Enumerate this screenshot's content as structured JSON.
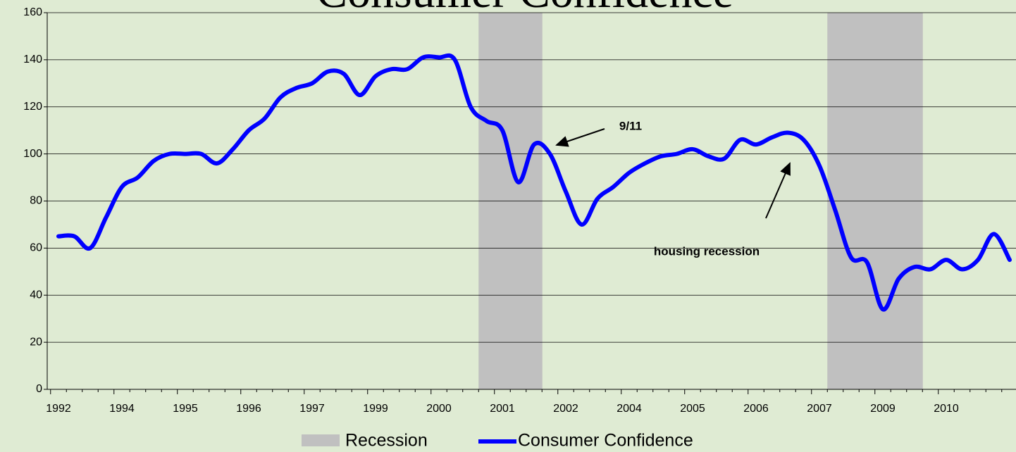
{
  "chart_data": {
    "type": "line",
    "title": "Consumer Confidence",
    "categories": [
      "1992",
      null,
      null,
      null,
      "1994",
      null,
      null,
      null,
      "1995",
      null,
      null,
      null,
      "1996",
      null,
      null,
      null,
      "1997",
      null,
      null,
      null,
      "1999",
      null,
      null,
      null,
      "2000",
      null,
      null,
      null,
      "2001",
      null,
      null,
      null,
      "2002",
      null,
      null,
      null,
      "2004",
      null,
      null,
      null,
      "2005",
      null,
      null,
      null,
      "2006",
      null,
      null,
      null,
      "2007",
      null,
      null,
      null,
      "2009",
      null,
      null,
      null,
      "2010",
      null,
      null,
      null,
      null
    ],
    "series": [
      {
        "name": "Recession",
        "color": "#c0c0c0",
        "kind": "band",
        "values": [
          null,
          null,
          null,
          null,
          null,
          null,
          null,
          null,
          null,
          null,
          null,
          null,
          null,
          null,
          null,
          null,
          null,
          null,
          null,
          null,
          null,
          null,
          null,
          null,
          null,
          null,
          null,
          160,
          160,
          160,
          160,
          null,
          null,
          null,
          null,
          null,
          null,
          null,
          null,
          null,
          null,
          null,
          null,
          null,
          null,
          null,
          null,
          null,
          null,
          160,
          160,
          160,
          160,
          160,
          160,
          null,
          null,
          null,
          null,
          null,
          null
        ]
      },
      {
        "name": "Consumer Confidence",
        "color": "#0000ff",
        "kind": "line",
        "values": [
          65,
          65,
          60,
          73,
          86,
          90,
          97,
          100,
          100,
          100,
          96,
          102,
          110,
          115,
          124,
          128,
          130,
          135,
          134,
          125,
          133,
          136,
          136,
          141,
          141,
          140,
          120,
          114,
          110,
          88,
          104,
          100,
          84,
          70,
          81,
          86,
          92,
          96,
          99,
          100,
          102,
          99,
          98,
          106,
          104,
          107,
          109,
          106,
          95,
          76,
          56,
          54,
          34,
          47,
          52,
          51,
          55,
          51,
          55,
          66,
          55
        ]
      }
    ],
    "ylim": [
      0,
      160
    ],
    "yticks": [
      0,
      20,
      40,
      60,
      80,
      100,
      120,
      140,
      160
    ],
    "grid": true,
    "legend": "bottom",
    "annotations": [
      "9/11",
      "housing recession"
    ]
  }
}
